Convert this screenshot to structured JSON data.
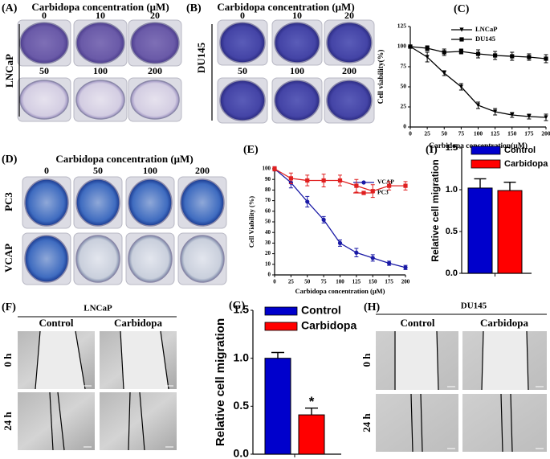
{
  "panels": {
    "A": {
      "label": "(A)",
      "title": "Carbidopa concentration (μM)",
      "concentrations": [
        "0",
        "10",
        "20",
        "50",
        "100",
        "200"
      ],
      "cell_line": "LNCaP"
    },
    "B": {
      "label": "(B)",
      "title": "Carbidopa concentration (μM)",
      "concentrations": [
        "0",
        "10",
        "20",
        "50",
        "100",
        "200"
      ],
      "cell_line": "DU145"
    },
    "D": {
      "label": "(D)",
      "title": "Carbidopa concentration (μM)",
      "concentrations": [
        "0",
        "50",
        "100",
        "200"
      ],
      "cell_lines": [
        "PC3",
        "VCAP"
      ]
    },
    "F": {
      "label": "(F)",
      "cell_line": "LNCaP",
      "groups": [
        "Control",
        "Carbidopa"
      ],
      "times": [
        "0 h",
        "24 h"
      ]
    },
    "H": {
      "label": "(H)",
      "cell_line": "DU145",
      "groups": [
        "Control",
        "Carbidopa"
      ],
      "times": [
        "0 h",
        "24 h"
      ]
    }
  },
  "chart_data": [
    {
      "type": "line",
      "label": "(C)",
      "xlabel": "Carbidopa concentration(μM)",
      "ylabel": "Cell viability(%)",
      "x": [
        0,
        25,
        50,
        75,
        100,
        125,
        150,
        175,
        200
      ],
      "series": [
        {
          "name": "LNCaP",
          "color": "#000000",
          "marker": "triangle",
          "values": [
            100,
            87,
            67,
            50,
            27,
            19,
            15,
            13,
            12
          ],
          "errors": [
            2,
            6,
            3,
            4,
            4,
            4,
            3,
            3,
            4
          ]
        },
        {
          "name": "DU145",
          "color": "#000000",
          "marker": "square",
          "values": [
            100,
            98,
            93,
            94,
            91,
            89,
            88,
            87,
            85
          ],
          "errors": [
            2,
            3,
            4,
            3,
            5,
            5,
            5,
            4,
            5
          ]
        }
      ],
      "xlim": [
        0,
        200
      ],
      "xticks": [
        0,
        25,
        50,
        75,
        100,
        125,
        150,
        175,
        200
      ],
      "ylim": [
        0,
        125
      ],
      "yticks": [
        0,
        25,
        50,
        75,
        100,
        125
      ],
      "legend": "upper right"
    },
    {
      "type": "line",
      "label": "(E)",
      "xlabel": "Carbidopa concentration (μM)",
      "ylabel": "Cell Viability (%)",
      "x": [
        0,
        25,
        50,
        75,
        100,
        125,
        150,
        175,
        200
      ],
      "series": [
        {
          "name": "VCAP",
          "color": "#1a1aa6",
          "marker": "circle",
          "values": [
            100,
            87,
            69,
            52,
            30,
            21,
            16,
            11,
            7
          ],
          "errors": [
            2,
            5,
            5,
            3,
            3,
            4,
            3,
            2,
            2
          ]
        },
        {
          "name": "PC3",
          "color": "#e02020",
          "marker": "square",
          "values": [
            100,
            91,
            89,
            89,
            89,
            84,
            79,
            84,
            84
          ],
          "errors": [
            2,
            5,
            5,
            6,
            5,
            6,
            6,
            4,
            4
          ]
        }
      ],
      "xlim": [
        0,
        200
      ],
      "xticks": [
        0,
        25,
        50,
        75,
        100,
        125,
        150,
        175,
        200
      ],
      "ylim": [
        0,
        100
      ],
      "yticks": [
        0,
        10,
        20,
        30,
        40,
        50,
        60,
        70,
        80,
        90,
        100
      ],
      "legend": "upper right"
    },
    {
      "type": "bar",
      "label": "(I)",
      "ylabel": "Relative cell migration",
      "series": [
        {
          "name": "Control",
          "color": "#0000cc",
          "values": [
            1.02
          ],
          "errors": [
            0.11
          ]
        },
        {
          "name": "Carbidopa",
          "color": "#ff0000",
          "values": [
            0.99
          ],
          "errors": [
            0.1
          ]
        }
      ],
      "ylim": [
        0,
        1.5
      ],
      "yticks": [
        {
          "value": 0,
          "label": "0.0"
        },
        {
          "value": 0.5,
          "label": "0.5"
        },
        {
          "value": 1,
          "label": "1.0"
        },
        {
          "value": 1.5,
          "label": "1.5"
        }
      ],
      "legend": "upper left"
    },
    {
      "type": "bar",
      "label": "(G)",
      "ylabel": "Relative cell migration",
      "series": [
        {
          "name": "Control",
          "color": "#0000cc",
          "values": [
            1.0
          ],
          "errors": [
            0.06
          ]
        },
        {
          "name": "Carbidopa",
          "color": "#ff0000",
          "values": [
            0.41
          ],
          "errors": [
            0.07
          ]
        }
      ],
      "annotation": "*",
      "ylim": [
        0,
        1.5
      ],
      "yticks": [
        {
          "value": 0,
          "label": "0.0"
        },
        {
          "value": 0.5,
          "label": "0.5"
        },
        {
          "value": 1,
          "label": "1.0"
        },
        {
          "value": 1.5,
          "label": "1.5"
        }
      ],
      "legend": "upper left"
    }
  ]
}
